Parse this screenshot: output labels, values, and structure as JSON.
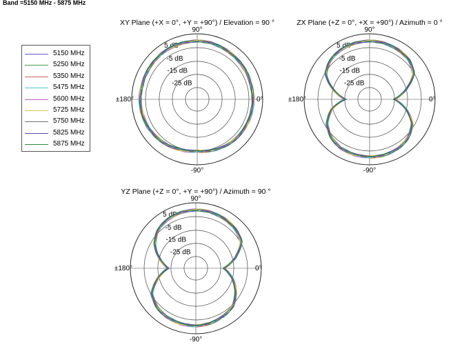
{
  "band_label": "Band =5150 MHz - 5875 MHz",
  "colors": [
    "#5b5bd6",
    "#3f9e4a",
    "#d65b5b",
    "#4fc9c9",
    "#c45bc4",
    "#d8c74a",
    "#707070",
    "#4b4bb8",
    "#2e8a3a"
  ],
  "legend": [
    "5150 MHz",
    "5250 MHz",
    "5350 MHz",
    "5475 MHz",
    "5600 MHz",
    "5725 MHz",
    "5750 MHz",
    "5825 MHz",
    "5875 MHz"
  ],
  "chart_data": [
    {
      "type": "polar-line",
      "title": "XY Plane (+X = 0°, +Y = +90°) / Elevation = 90 °",
      "angle_labels": {
        "top": "90",
        "left": "±180",
        "right": "0",
        "bottom": "-90"
      },
      "ring_labels": [
        "5 dB",
        "-5 dB",
        "-15 dB",
        "-25 dB"
      ],
      "ring_values": [
        5,
        -5,
        -15,
        -25
      ],
      "rlim": [
        -35,
        5
      ],
      "angles_deg": [
        0,
        15,
        30,
        45,
        60,
        75,
        90,
        105,
        120,
        135,
        150,
        165,
        180,
        195,
        210,
        225,
        240,
        255,
        270,
        285,
        300,
        315,
        330,
        345
      ],
      "base_gain_db": [
        -1,
        -1,
        -0.8,
        -0.5,
        0,
        0.5,
        0.8,
        0.6,
        0.5,
        0.3,
        0,
        -0.2,
        0,
        -0.3,
        -0.6,
        -1.2,
        -2,
        -2.8,
        -3.5,
        -2.8,
        -2,
        -1.5,
        -1.2,
        -1
      ]
    },
    {
      "type": "polar-line",
      "title": "ZX Plane (+Z = 0°, +X = +90°) / Azimuth = 0 °",
      "angle_labels": {
        "top": "90",
        "left": "±180",
        "right": "0",
        "bottom": "-90"
      },
      "ring_labels": [
        "5 dB",
        "-5 dB",
        "-15 dB",
        "-25 dB"
      ],
      "ring_values": [
        5,
        -5,
        -15,
        -25
      ],
      "rlim": [
        -35,
        5
      ],
      "angles_deg": [
        0,
        15,
        30,
        45,
        60,
        75,
        90,
        105,
        120,
        135,
        150,
        165,
        180,
        195,
        210,
        225,
        240,
        255,
        270,
        285,
        300,
        315,
        330,
        345
      ],
      "base_gain_db": [
        -20,
        -12,
        -4,
        -1,
        0,
        0.5,
        0.8,
        0.5,
        0,
        -1,
        -4,
        -12,
        -20,
        -11,
        -5,
        -2,
        -0.5,
        0,
        0,
        0,
        -0.5,
        -2,
        -5,
        -12
      ]
    },
    {
      "type": "polar-line",
      "title": "YZ Plane (+Z = 0°, +Y = +90°) / Azimuth = 90 °",
      "angle_labels": {
        "top": "90",
        "left": "±180",
        "right": "0",
        "bottom": "-90"
      },
      "ring_labels": [
        "5 dB",
        "-5 dB",
        "-15 dB",
        "-25 dB"
      ],
      "ring_values": [
        5,
        -5,
        -15,
        -25
      ],
      "rlim": [
        -35,
        5
      ],
      "angles_deg": [
        0,
        15,
        30,
        45,
        60,
        75,
        90,
        105,
        120,
        135,
        150,
        165,
        180,
        195,
        210,
        225,
        240,
        255,
        270,
        285,
        300,
        315,
        330,
        345
      ],
      "base_gain_db": [
        -18,
        -10,
        -3,
        -1,
        0,
        0.5,
        0.8,
        0.3,
        -0.5,
        -2,
        -6,
        -12,
        -18,
        -11,
        -4,
        -1.5,
        -0.5,
        0,
        0,
        -0.5,
        -1.5,
        -3,
        -7,
        -12
      ]
    }
  ]
}
